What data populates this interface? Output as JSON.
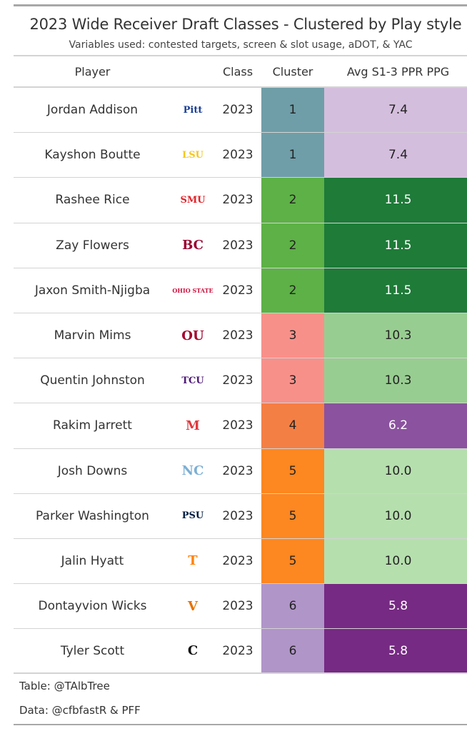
{
  "title": "2023 Wide Receiver Draft Classes - Clustered by Play style",
  "subtitle": "Variables used: contested targets, screen & slot usage, aDOT, & YAC",
  "footer": {
    "table_credit": "Table: @TAlbTree",
    "data_credit": "Data: @cfbfastR & PFF"
  },
  "chart_data": {
    "type": "table",
    "columns": [
      "Player",
      "",
      "Class",
      "Cluster",
      "Avg S1-3 PPR PPG"
    ],
    "rows": [
      {
        "player": "Jordan Addison",
        "school_logo": "Pitt",
        "logo_color": "#1c3f94",
        "class": "2023",
        "cluster": "1",
        "avg": "7.4",
        "cluster_color": "#6f9ea8",
        "avg_color": "#d4bedd",
        "avg_text": "#222"
      },
      {
        "player": "Kayshon Boutte",
        "school_logo": "LSU",
        "logo_color": "#f6c61b",
        "class": "2023",
        "cluster": "1",
        "avg": "7.4",
        "cluster_color": "#6f9ea8",
        "avg_color": "#d4bedd",
        "avg_text": "#222"
      },
      {
        "player": "Rashee Rice",
        "school_logo": "SMU",
        "logo_color": "#e2232a",
        "class": "2023",
        "cluster": "2",
        "avg": "11.5",
        "cluster_color": "#5db146",
        "avg_color": "#1e7b38",
        "avg_text": "#fff"
      },
      {
        "player": "Zay Flowers",
        "school_logo": "BC",
        "logo_color": "#98002e",
        "class": "2023",
        "cluster": "2",
        "avg": "11.5",
        "cluster_color": "#5db146",
        "avg_color": "#1e7b38",
        "avg_text": "#fff"
      },
      {
        "player": "Jaxon Smith-Njigba",
        "school_logo": "OHIO STATE",
        "logo_color": "#ce0f3d",
        "class": "2023",
        "cluster": "2",
        "avg": "11.5",
        "cluster_color": "#5db146",
        "avg_color": "#1e7b38",
        "avg_text": "#fff"
      },
      {
        "player": "Marvin Mims",
        "school_logo": "OU",
        "logo_color": "#a3022c",
        "class": "2023",
        "cluster": "3",
        "avg": "10.3",
        "cluster_color": "#f8908a",
        "avg_color": "#98cd91",
        "avg_text": "#222"
      },
      {
        "player": "Quentin Johnston",
        "school_logo": "TCU",
        "logo_color": "#4d1979",
        "class": "2023",
        "cluster": "3",
        "avg": "10.3",
        "cluster_color": "#f8908a",
        "avg_color": "#98cd91",
        "avg_text": "#222"
      },
      {
        "player": "Rakim Jarrett",
        "school_logo": "M",
        "logo_color": "#e03a3e",
        "class": "2023",
        "cluster": "4",
        "avg": "6.2",
        "cluster_color": "#f47f45",
        "avg_color": "#8b529f",
        "avg_text": "#fff"
      },
      {
        "player": "Josh Downs",
        "school_logo": "NC",
        "logo_color": "#7bafd4",
        "class": "2023",
        "cluster": "5",
        "avg": "10.0",
        "cluster_color": "#fd8721",
        "avg_color": "#b6dfae",
        "avg_text": "#222"
      },
      {
        "player": "Parker Washington",
        "school_logo": "PSU",
        "logo_color": "#041e42",
        "class": "2023",
        "cluster": "5",
        "avg": "10.0",
        "cluster_color": "#fd8721",
        "avg_color": "#b6dfae",
        "avg_text": "#222"
      },
      {
        "player": "Jalin Hyatt",
        "school_logo": "T",
        "logo_color": "#ff8200",
        "class": "2023",
        "cluster": "5",
        "avg": "10.0",
        "cluster_color": "#fd8721",
        "avg_color": "#b6dfae",
        "avg_text": "#222"
      },
      {
        "player": "Dontayvion Wicks",
        "school_logo": "V",
        "logo_color": "#e57200",
        "class": "2023",
        "cluster": "6",
        "avg": "5.8",
        "cluster_color": "#b095c9",
        "avg_color": "#762a83",
        "avg_text": "#fff"
      },
      {
        "player": "Tyler Scott",
        "school_logo": "C",
        "logo_color": "#111111",
        "class": "2023",
        "cluster": "6",
        "avg": "5.8",
        "cluster_color": "#b095c9",
        "avg_color": "#762a83",
        "avg_text": "#fff"
      }
    ]
  }
}
